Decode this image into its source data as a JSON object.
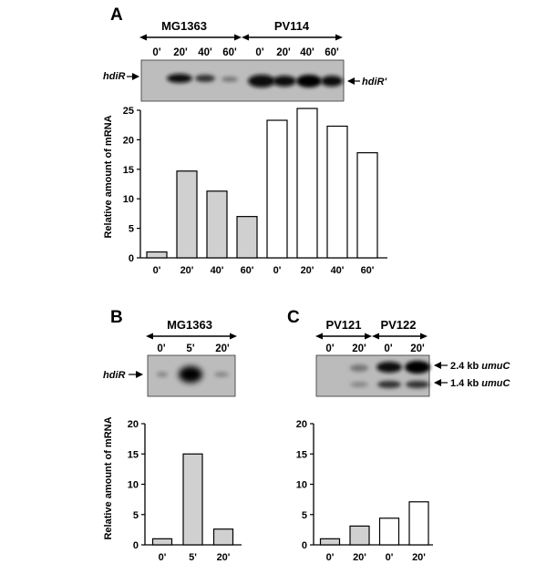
{
  "panels": {
    "A": {
      "letter": "A",
      "strains": [
        "MG1363",
        "PV114"
      ],
      "lanes": [
        "0'",
        "20'",
        "40'",
        "60'",
        "0'",
        "20'",
        "40'",
        "60'"
      ],
      "blot_label_left": "hdiR",
      "blot_label_right": "hdiR'",
      "ylabel": "Relative amount of mRNA"
    },
    "B": {
      "letter": "B",
      "strains": [
        "MG1363"
      ],
      "lanes": [
        "0'",
        "5'",
        "20'"
      ],
      "blot_label_left": "hdiR",
      "ylabel": "Relative amount of mRNA"
    },
    "C": {
      "letter": "C",
      "strains": [
        "PV121",
        "PV122"
      ],
      "lanes": [
        "0'",
        "20'",
        "0'",
        "20'"
      ],
      "band_labels": [
        {
          "size": "2.4 kb",
          "gene": "umuC"
        },
        {
          "size": "1.4 kb",
          "gene": "umuC"
        }
      ]
    }
  },
  "chart_data": [
    {
      "type": "bar",
      "panel": "A",
      "categories": [
        "0'",
        "20'",
        "40'",
        "60'",
        "0'",
        "20'",
        "40'",
        "60'"
      ],
      "series": [
        {
          "values": [
            1,
            14.7,
            11.3,
            7,
            null,
            null,
            null,
            null
          ],
          "color": "#d0d0d0"
        },
        {
          "values": [
            null,
            null,
            null,
            null,
            23.3,
            25.3,
            22.3,
            17.8
          ],
          "color": "#ffffff"
        }
      ],
      "ylabel": "Relative amount of mRNA",
      "ylim": [
        0,
        25
      ],
      "yticks": [
        0,
        5,
        10,
        15,
        20,
        25
      ],
      "grid": false
    },
    {
      "type": "bar",
      "panel": "B",
      "categories": [
        "0'",
        "5'",
        "20'"
      ],
      "series": [
        {
          "values": [
            1,
            15,
            2.6
          ],
          "color": "#d0d0d0"
        }
      ],
      "ylabel": "Relative amount of mRNA",
      "ylim": [
        0,
        20
      ],
      "yticks": [
        0,
        5,
        10,
        15,
        20
      ],
      "grid": false
    },
    {
      "type": "bar",
      "panel": "C",
      "categories": [
        "0'",
        "20'",
        "0'",
        "20'"
      ],
      "series": [
        {
          "values": [
            1,
            3.1,
            null,
            null
          ],
          "color": "#d0d0d0"
        },
        {
          "values": [
            null,
            null,
            4.4,
            7.1
          ],
          "color": "#ffffff"
        }
      ],
      "ylim": [
        0,
        20
      ],
      "yticks": [
        0,
        5,
        10,
        15,
        20
      ],
      "grid": false
    }
  ]
}
